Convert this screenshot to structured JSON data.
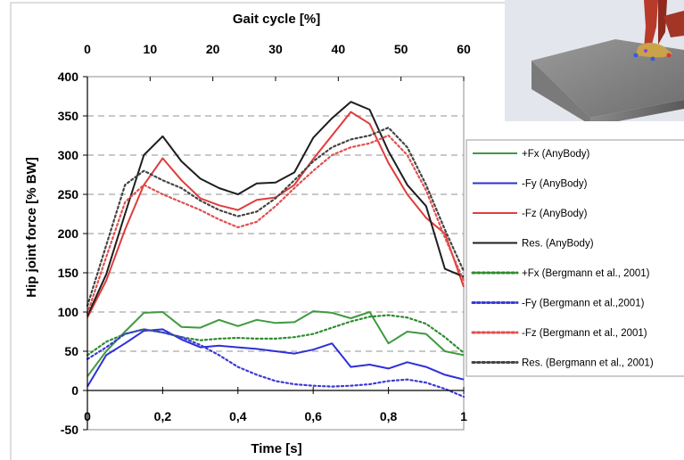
{
  "chart_data": {
    "type": "line",
    "title": "",
    "xlabel": "Time [s]",
    "x2label": "Gait cycle [%]",
    "ylabel": "Hip joint force [% BW]",
    "xlim": [
      0,
      1
    ],
    "x2lim": [
      0,
      60
    ],
    "ylim": [
      -50,
      400
    ],
    "x_ticks": [
      "0",
      "0,2",
      "0,4",
      "0,6",
      "0,8",
      "1"
    ],
    "x2_ticks": [
      "0",
      "10",
      "20",
      "30",
      "40",
      "50",
      "60"
    ],
    "y_ticks": [
      "-50",
      "0",
      "50",
      "100",
      "150",
      "200",
      "250",
      "300",
      "350",
      "400"
    ],
    "grid": "dashed horizontal",
    "legend_position": "right",
    "series": [
      {
        "name": "+Fx (AnyBody)",
        "color": "#3f9a3f",
        "style": "solid",
        "x": [
          0,
          0.05,
          0.1,
          0.15,
          0.2,
          0.25,
          0.3,
          0.35,
          0.4,
          0.45,
          0.5,
          0.55,
          0.6,
          0.65,
          0.7,
          0.75,
          0.8,
          0.85,
          0.9,
          0.95,
          1.0
        ],
        "y": [
          18,
          50,
          75,
          99,
          100,
          81,
          80,
          90,
          82,
          90,
          86,
          87,
          101,
          99,
          92,
          100,
          60,
          75,
          72,
          50,
          45
        ]
      },
      {
        "name": "-Fy (AnyBody)",
        "color": "#2f2fd8",
        "style": "solid",
        "x": [
          0,
          0.05,
          0.1,
          0.15,
          0.2,
          0.25,
          0.3,
          0.35,
          0.4,
          0.45,
          0.5,
          0.55,
          0.6,
          0.65,
          0.7,
          0.75,
          0.8,
          0.85,
          0.9,
          0.95,
          1.0
        ],
        "y": [
          5,
          45,
          60,
          76,
          78,
          65,
          55,
          57,
          55,
          53,
          50,
          47,
          52,
          60,
          30,
          33,
          28,
          36,
          30,
          20,
          14
        ]
      },
      {
        "name": "-Fz (AnyBody)",
        "color": "#e03c3c",
        "style": "solid",
        "x": [
          0,
          0.05,
          0.1,
          0.15,
          0.2,
          0.25,
          0.3,
          0.35,
          0.4,
          0.45,
          0.5,
          0.55,
          0.6,
          0.65,
          0.7,
          0.75,
          0.8,
          0.85,
          0.9,
          0.95,
          1.0
        ],
        "y": [
          93,
          140,
          205,
          262,
          296,
          268,
          245,
          236,
          230,
          243,
          246,
          262,
          295,
          325,
          355,
          340,
          290,
          250,
          220,
          200,
          132
        ]
      },
      {
        "name": "Res. (AnyBody)",
        "color": "#1e1e1e",
        "style": "solid",
        "x": [
          0,
          0.05,
          0.1,
          0.15,
          0.2,
          0.25,
          0.3,
          0.35,
          0.4,
          0.45,
          0.5,
          0.55,
          0.6,
          0.65,
          0.7,
          0.75,
          0.8,
          0.85,
          0.9,
          0.95,
          1.0
        ],
        "y": [
          95,
          148,
          225,
          300,
          324,
          292,
          270,
          258,
          250,
          264,
          265,
          278,
          322,
          347,
          368,
          358,
          305,
          262,
          235,
          155,
          145
        ]
      },
      {
        "name": "+Fx (Bergmann et al., 2001)",
        "color": "#2e8b2e",
        "style": "dotted",
        "x": [
          0,
          0.05,
          0.1,
          0.15,
          0.2,
          0.25,
          0.3,
          0.35,
          0.4,
          0.45,
          0.5,
          0.55,
          0.6,
          0.65,
          0.7,
          0.75,
          0.8,
          0.85,
          0.9,
          0.95,
          1.0
        ],
        "y": [
          45,
          62,
          72,
          78,
          74,
          68,
          64,
          66,
          67,
          66,
          66,
          68,
          72,
          80,
          88,
          94,
          96,
          93,
          85,
          68,
          48
        ]
      },
      {
        "name": "-Fy (Bergmann et al.,2001)",
        "color": "#3a3ad8",
        "style": "dotted",
        "x": [
          0,
          0.05,
          0.1,
          0.15,
          0.2,
          0.25,
          0.3,
          0.35,
          0.4,
          0.45,
          0.5,
          0.55,
          0.6,
          0.65,
          0.7,
          0.75,
          0.8,
          0.85,
          0.9,
          0.95,
          1.0
        ],
        "y": [
          40,
          55,
          72,
          78,
          74,
          68,
          58,
          45,
          30,
          20,
          12,
          8,
          6,
          5,
          6,
          8,
          12,
          14,
          10,
          2,
          -8
        ]
      },
      {
        "name": "-Fz (Bergmann et al., 2001)",
        "color": "#e05050",
        "style": "dotted",
        "x": [
          0,
          0.05,
          0.1,
          0.15,
          0.2,
          0.25,
          0.3,
          0.35,
          0.4,
          0.45,
          0.5,
          0.55,
          0.6,
          0.65,
          0.7,
          0.75,
          0.8,
          0.85,
          0.9,
          0.95,
          1.0
        ],
        "y": [
          98,
          170,
          240,
          262,
          250,
          240,
          230,
          218,
          208,
          215,
          235,
          258,
          280,
          300,
          310,
          315,
          325,
          300,
          255,
          195,
          140
        ]
      },
      {
        "name": "Res. (Bergmann et al., 2001)",
        "color": "#444444",
        "style": "dotted",
        "x": [
          0,
          0.05,
          0.1,
          0.15,
          0.2,
          0.25,
          0.3,
          0.35,
          0.4,
          0.45,
          0.5,
          0.55,
          0.6,
          0.65,
          0.7,
          0.75,
          0.8,
          0.85,
          0.9,
          0.95,
          1.0
        ],
        "y": [
          108,
          185,
          262,
          280,
          268,
          258,
          242,
          230,
          222,
          228,
          245,
          268,
          292,
          310,
          320,
          325,
          335,
          310,
          262,
          205,
          152
        ]
      }
    ]
  }
}
